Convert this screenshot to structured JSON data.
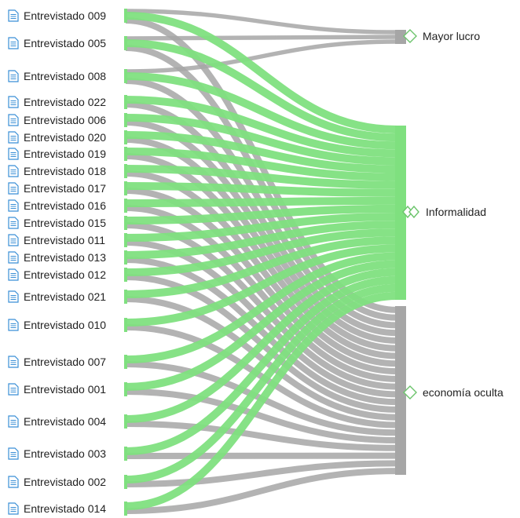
{
  "colors": {
    "green": "#7fe07f",
    "gray": "#a6a6a6",
    "icon": "#3a8fd6",
    "target_icon": "#6cc46c"
  },
  "targets": [
    {
      "id": "mayor",
      "label": "Mayor lucro",
      "icon": "diamond-icon"
    },
    {
      "id": "informalidad",
      "label": "Informalidad",
      "icon": "double-diamond-icon"
    },
    {
      "id": "economia",
      "label": "economía oculta",
      "icon": "diamond-icon"
    }
  ],
  "sources": [
    {
      "label": "Entrevistado 009",
      "links": {
        "mayor": 1,
        "informalidad": 1,
        "economia": 1
      }
    },
    {
      "label": "Entrevistado 005",
      "links": {
        "mayor": 1,
        "informalidad": 1,
        "economia": 1
      }
    },
    {
      "label": "Entrevistado 008",
      "links": {
        "mayor": 1,
        "informalidad": 1,
        "economia": 1
      }
    },
    {
      "label": "Entrevistado 022",
      "links": {
        "informalidad": 1,
        "economia": 1
      }
    },
    {
      "label": "Entrevistado 006",
      "links": {
        "informalidad": 1,
        "economia": 1
      }
    },
    {
      "label": "Entrevistado 020",
      "links": {
        "informalidad": 1,
        "economia": 1
      }
    },
    {
      "label": "Entrevistado 019",
      "links": {
        "informalidad": 1,
        "economia": 1
      }
    },
    {
      "label": "Entrevistado 018",
      "links": {
        "informalidad": 1,
        "economia": 1
      }
    },
    {
      "label": "Entrevistado 017",
      "links": {
        "informalidad": 1,
        "economia": 1
      }
    },
    {
      "label": "Entrevistado 016",
      "links": {
        "informalidad": 1,
        "economia": 1
      }
    },
    {
      "label": "Entrevistado 015",
      "links": {
        "informalidad": 1,
        "economia": 1
      }
    },
    {
      "label": "Entrevistado 011",
      "links": {
        "informalidad": 1,
        "economia": 1
      }
    },
    {
      "label": "Entrevistado 013",
      "links": {
        "informalidad": 1,
        "economia": 1
      }
    },
    {
      "label": "Entrevistado 012",
      "links": {
        "informalidad": 1,
        "economia": 1
      }
    },
    {
      "label": "Entrevistado 021",
      "links": {
        "informalidad": 1,
        "economia": 1
      }
    },
    {
      "label": "Entrevistado 010",
      "links": {
        "informalidad": 1,
        "economia": 1
      }
    },
    {
      "label": "Entrevistado 007",
      "links": {
        "informalidad": 1,
        "economia": 1
      }
    },
    {
      "label": "Entrevistado 001",
      "links": {
        "informalidad": 1,
        "economia": 1
      }
    },
    {
      "label": "Entrevistado 004",
      "links": {
        "informalidad": 1,
        "economia": 1
      }
    },
    {
      "label": "Entrevistado 003",
      "links": {
        "informalidad": 1,
        "economia": 1
      }
    },
    {
      "label": "Entrevistado 002",
      "links": {
        "informalidad": 1,
        "economia": 1
      }
    },
    {
      "label": "Entrevistado 014",
      "links": {
        "informalidad": 1,
        "economia": 1
      }
    }
  ]
}
